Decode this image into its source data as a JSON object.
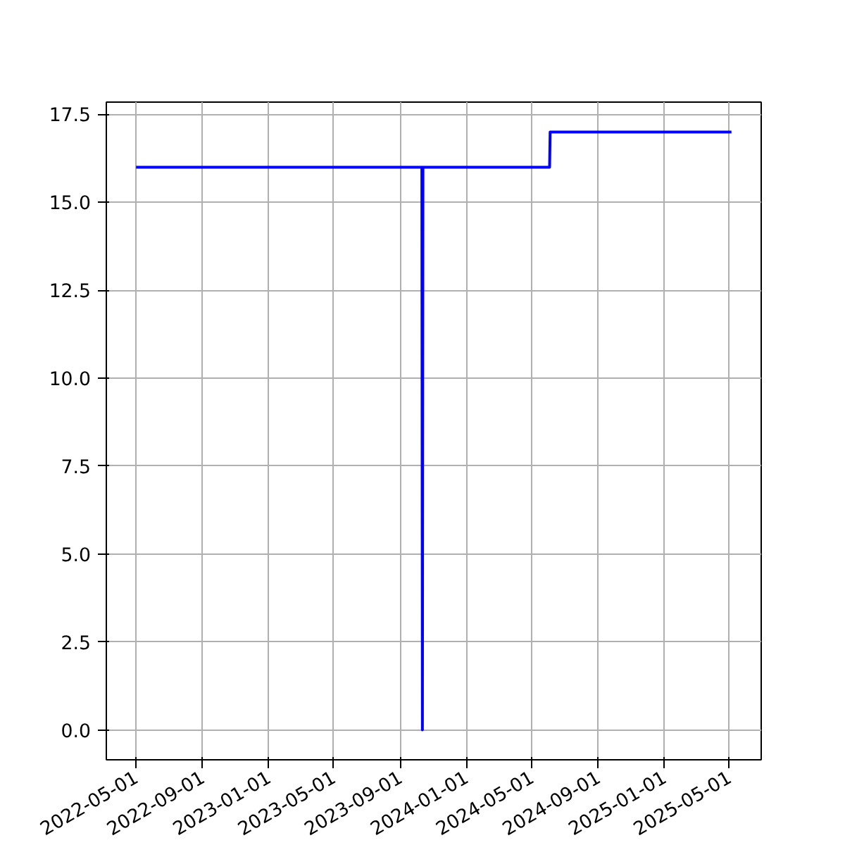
{
  "chart_data": {
    "type": "line",
    "x": [
      "2022-05-01",
      "2023-10-11",
      "2023-10-12",
      "2023-10-13",
      "2024-06-03",
      "2024-06-04",
      "2025-05-05"
    ],
    "series": [
      {
        "color": "#0000ff",
        "values": [
          16,
          16,
          0,
          16,
          16,
          17,
          17
        ]
      }
    ],
    "xlim": [
      "2022-03-07",
      "2025-06-29"
    ],
    "xticks": [
      "2022-05-01",
      "2022-09-01",
      "2023-01-01",
      "2023-05-01",
      "2023-09-01",
      "2024-01-01",
      "2024-05-01",
      "2024-09-01",
      "2025-01-01",
      "2025-05-01"
    ],
    "ylim": [
      -0.85,
      17.85
    ],
    "yticks": [
      {
        "value": 0,
        "label": "0.0"
      },
      {
        "value": 2.5,
        "label": "2.5"
      },
      {
        "value": 5,
        "label": "5.0"
      },
      {
        "value": 7.5,
        "label": "7.5"
      },
      {
        "value": 10,
        "label": "10.0"
      },
      {
        "value": 12.5,
        "label": "12.5"
      },
      {
        "value": 15,
        "label": "15.0"
      },
      {
        "value": 17.5,
        "label": "17.5"
      }
    ],
    "grid": true,
    "line_style": "solid"
  }
}
